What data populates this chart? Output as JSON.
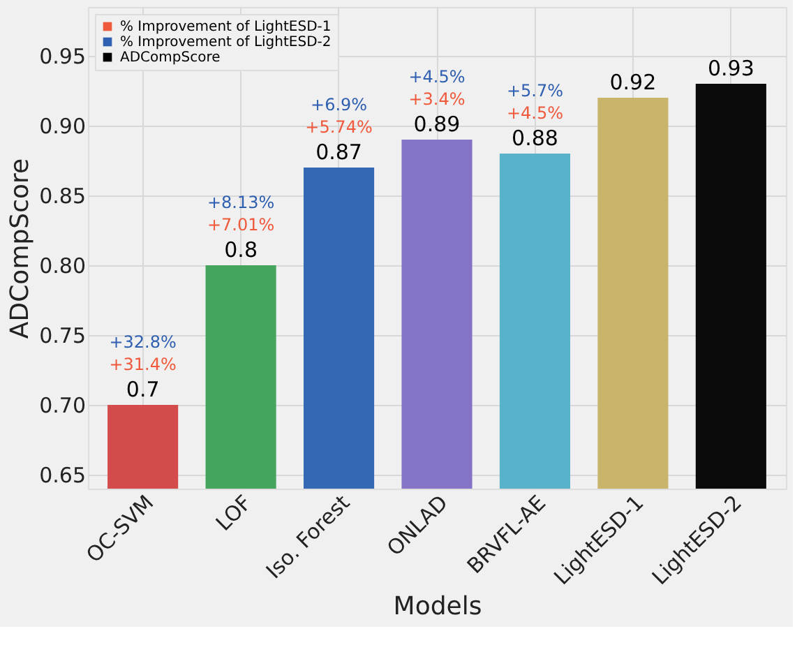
{
  "chart_data": {
    "type": "bar",
    "xlabel": "Models",
    "ylabel": "ADCompScore",
    "categories": [
      "OC-SVM",
      "LOF",
      "Iso. Forest",
      "ONLAD",
      "BRVFL-AE",
      "LightESD-1",
      "LightESD-2"
    ],
    "series": [
      {
        "name": "% Improvement of LightESD-1",
        "color": "#f05a3c",
        "values": [
          null,
          null,
          null,
          null,
          null,
          null,
          null
        ],
        "value_labels": [
          "+31.4%",
          "+7.01%",
          "+5.74%",
          "+3.4%",
          "+4.5%",
          null,
          null
        ]
      },
      {
        "name": "% Improvement of LightESD-2",
        "color": "#2f5fb0",
        "values": [
          null,
          null,
          null,
          null,
          null,
          null,
          null
        ],
        "value_labels": [
          "+32.8%",
          "+8.13%",
          "+6.9%",
          "+4.5%",
          "+5.7%",
          null,
          null
        ]
      },
      {
        "name": "ADCompScore",
        "color": "#000000",
        "colors": [
          "#d34b4b",
          "#45a45d",
          "#3468b4",
          "#8574c6",
          "#58b2cc",
          "#c9b46c",
          "#0a0a0a"
        ],
        "values": [
          0.7,
          0.8,
          0.87,
          0.89,
          0.88,
          0.92,
          0.93
        ]
      }
    ],
    "data_labels": true,
    "ylim": [
      0.64,
      0.985
    ],
    "yticks": [
      0.65,
      {
        "value": 0.7,
        "label": "0.70"
      },
      0.75,
      {
        "value": 0.8,
        "label": "0.80"
      },
      0.85,
      {
        "value": 0.9,
        "label": "0.90"
      },
      0.95
    ],
    "grid": true,
    "legend": "top left"
  }
}
